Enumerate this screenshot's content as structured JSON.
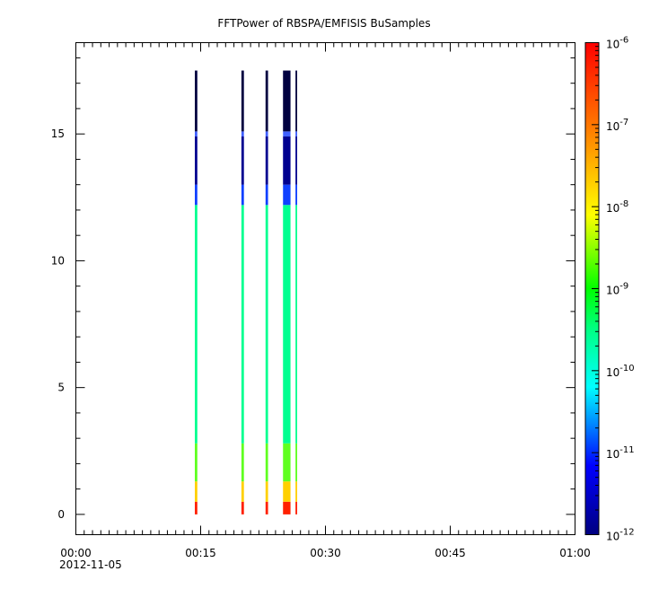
{
  "chart_data": {
    "type": "heatmap",
    "title": "FFTPower of RBSPA/EMFISIS  BuSamples",
    "xlabel": "",
    "ylabel": "",
    "x_axis": {
      "range_minutes": [
        0,
        60
      ],
      "major_ticks": [
        0,
        15,
        30,
        45,
        60
      ],
      "tick_labels": [
        "00:00",
        "00:15",
        "00:30",
        "00:45",
        "01:00"
      ],
      "minor_step_minutes": 1,
      "date_label": "2012-11-05"
    },
    "y_axis": {
      "range": [
        -0.8,
        18.6
      ],
      "ticks": [
        0,
        5,
        10,
        15
      ],
      "tick_labels": [
        "0",
        "5",
        "10",
        "15"
      ]
    },
    "colorbar": {
      "scale": "log",
      "range": [
        1e-12,
        1e-06
      ],
      "ticks": [
        {
          "base": "10",
          "exp": "-12"
        },
        {
          "base": "10",
          "exp": "-11"
        },
        {
          "base": "10",
          "exp": "-10"
        },
        {
          "base": "10",
          "exp": "-9"
        },
        {
          "base": "10",
          "exp": "-8"
        },
        {
          "base": "10",
          "exp": "-7"
        },
        {
          "base": "10",
          "exp": "-6"
        }
      ],
      "colors": [
        "#000080",
        "#0000ff",
        "#00ffff",
        "#00ff80",
        "#00ff00",
        "#ffff00",
        "#ff8000",
        "#ff0000"
      ]
    },
    "strips": [
      {
        "start": 14.3,
        "end": 14.6
      },
      {
        "start": 19.9,
        "end": 20.2
      },
      {
        "start": 22.8,
        "end": 23.1
      },
      {
        "start": 24.9,
        "end": 25.8
      },
      {
        "start": 26.4,
        "end": 26.6
      }
    ],
    "frequency_top": 17.5,
    "bands": [
      {
        "from": 0,
        "to": 0.5,
        "color": "#ff2000"
      },
      {
        "from": 0.5,
        "to": 1.3,
        "color": "#ffd000"
      },
      {
        "from": 1.3,
        "to": 2.8,
        "color": "#60ff20"
      },
      {
        "from": 2.8,
        "to": 12.2,
        "color": "#00ff90"
      },
      {
        "from": 12.2,
        "to": 13.0,
        "color": "#1040ff"
      },
      {
        "from": 13.0,
        "to": 14.9,
        "color": "#000090"
      },
      {
        "from": 14.9,
        "to": 15.1,
        "color": "#4060ff"
      },
      {
        "from": 15.1,
        "to": 17.5,
        "color": "#000040"
      }
    ]
  }
}
